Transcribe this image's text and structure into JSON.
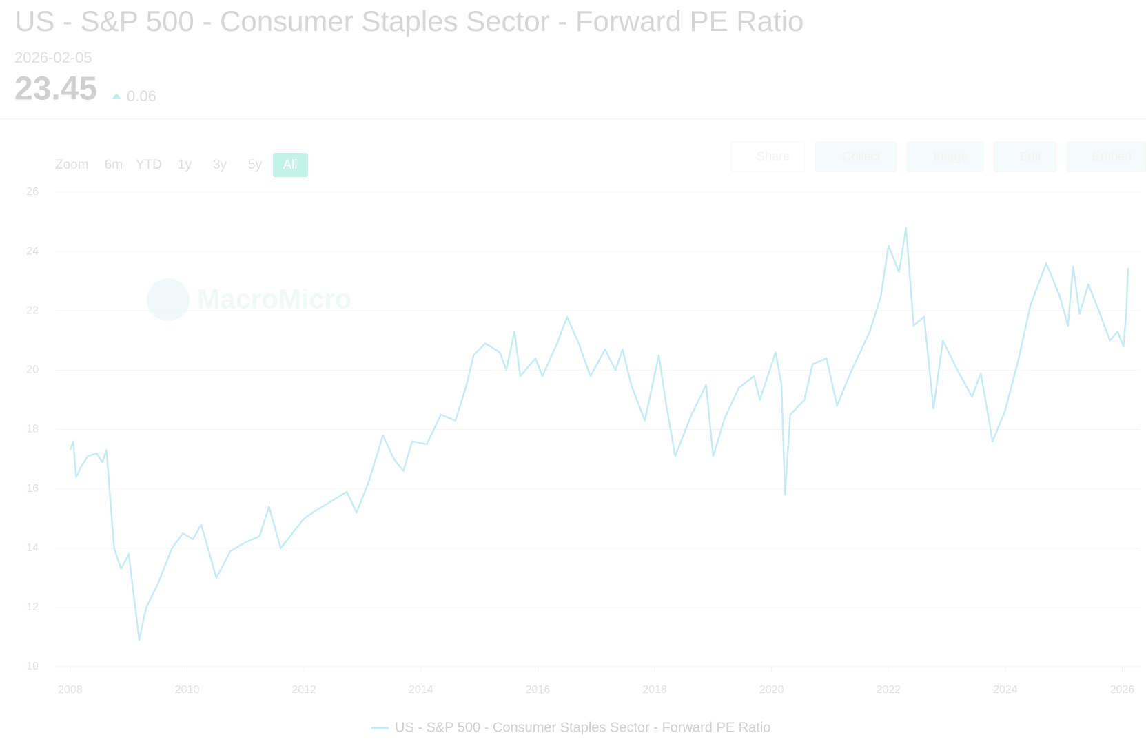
{
  "header": {
    "title": "US - S&P 500 - Consumer Staples Sector - Forward PE Ratio",
    "date": "2026-02-05",
    "value": 23.45,
    "change": 0.06
  },
  "toolbar": {
    "zoom_label": "Zoom",
    "ranges": [
      "6m",
      "YTD",
      "1y",
      "3y",
      "5y",
      "All"
    ],
    "actions": [
      "Share",
      "Collect",
      "Image",
      "Edit",
      "Embed"
    ]
  },
  "watermark": "MacroMicro",
  "chart_data": {
    "type": "line",
    "x": [
      2008.0,
      2008.05,
      2008.1,
      2008.2,
      2008.3,
      2008.45,
      2008.55,
      2008.62,
      2008.75,
      2008.87,
      2009.0,
      2009.18,
      2009.3,
      2009.5,
      2009.74,
      2009.93,
      2010.1,
      2010.24,
      2010.5,
      2010.74,
      2011.0,
      2011.24,
      2011.4,
      2011.6,
      2011.8,
      2012.0,
      2012.23,
      2012.48,
      2012.73,
      2012.9,
      2013.1,
      2013.35,
      2013.54,
      2013.7,
      2013.85,
      2014.1,
      2014.34,
      2014.59,
      2014.78,
      2014.9,
      2015.1,
      2015.35,
      2015.46,
      2015.6,
      2015.7,
      2015.96,
      2016.08,
      2016.33,
      2016.5,
      2016.7,
      2016.9,
      2017.15,
      2017.33,
      2017.45,
      2017.6,
      2017.83,
      2018.07,
      2018.2,
      2018.35,
      2018.63,
      2018.88,
      2019.0,
      2019.2,
      2019.44,
      2019.7,
      2019.8,
      2020.07,
      2020.17,
      2020.23,
      2020.32,
      2020.56,
      2020.7,
      2020.94,
      2021.12,
      2021.37,
      2021.68,
      2021.87,
      2022.0,
      2022.18,
      2022.3,
      2022.43,
      2022.61,
      2022.77,
      2022.93,
      2023.18,
      2023.43,
      2023.58,
      2023.78,
      2023.99,
      2024.23,
      2024.43,
      2024.7,
      2024.93,
      2025.07,
      2025.16,
      2025.27,
      2025.42,
      2025.6,
      2025.79,
      2025.92,
      2026.02,
      2026.07,
      2026.1
    ],
    "series": [
      {
        "name": "US - S&P 500 - Consumer Staples Sector - Forward PE Ratio",
        "color": "#c6ebf3",
        "values": [
          17.3,
          17.6,
          16.4,
          16.8,
          17.1,
          17.2,
          16.9,
          17.3,
          14.0,
          13.3,
          13.8,
          10.9,
          12.0,
          12.8,
          14.0,
          14.5,
          14.3,
          14.8,
          13.0,
          13.9,
          14.2,
          14.4,
          15.4,
          14.0,
          14.5,
          15.0,
          15.3,
          15.6,
          15.9,
          15.2,
          16.2,
          17.8,
          17.0,
          16.6,
          17.6,
          17.5,
          18.5,
          18.3,
          19.5,
          20.5,
          20.9,
          20.6,
          20.0,
          21.3,
          19.8,
          20.4,
          19.8,
          20.9,
          21.8,
          20.9,
          19.8,
          20.7,
          20.0,
          20.7,
          19.5,
          18.3,
          20.5,
          18.8,
          17.1,
          18.5,
          19.5,
          17.1,
          18.4,
          19.4,
          19.8,
          19.0,
          20.6,
          19.5,
          15.8,
          18.5,
          19.0,
          20.2,
          20.4,
          18.8,
          20.0,
          21.3,
          22.5,
          24.2,
          23.3,
          24.8,
          21.5,
          21.8,
          18.7,
          21.0,
          20.0,
          19.1,
          19.9,
          17.6,
          18.6,
          20.4,
          22.2,
          23.6,
          22.5,
          21.5,
          23.5,
          21.9,
          22.9,
          22.0,
          21.0,
          21.3,
          20.8,
          22.0,
          23.45
        ]
      }
    ],
    "xlim": [
      2007.8,
      2026.3
    ],
    "xticks": [
      2008,
      2010,
      2012,
      2014,
      2016,
      2018,
      2020,
      2022,
      2024,
      2026
    ],
    "ylim": [
      10,
      26
    ],
    "yticks": [
      10,
      12,
      14,
      16,
      18,
      20,
      22,
      24,
      26
    ],
    "grid": true,
    "legend": "bottom"
  }
}
